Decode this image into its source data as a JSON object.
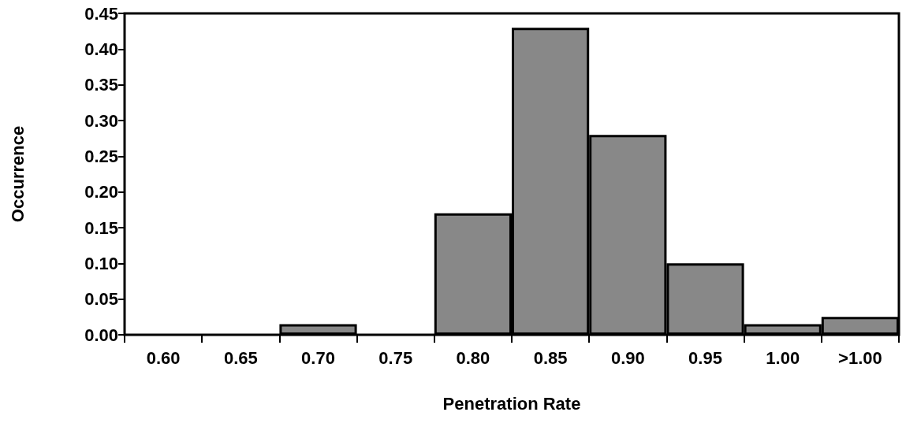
{
  "chart_data": {
    "type": "bar",
    "xlabel": "Penetration Rate",
    "ylabel": "Occurrence",
    "categories": [
      "0.60",
      "0.65",
      "0.70",
      "0.75",
      "0.80",
      "0.85",
      "0.90",
      "0.95",
      "1.00",
      ">1.00"
    ],
    "values": [
      0,
      0,
      0.015,
      0,
      0.17,
      0.43,
      0.28,
      0.1,
      0.015,
      0.025
    ],
    "color": "#888888",
    "ylim": [
      0,
      0.45
    ],
    "yticks": [
      {
        "value": 0,
        "label": "0.00"
      },
      {
        "value": 0.05,
        "label": "0.05"
      },
      {
        "value": 0.1,
        "label": "0.10"
      },
      {
        "value": 0.15,
        "label": "0.15"
      },
      {
        "value": 0.2,
        "label": "0.20"
      },
      {
        "value": 0.25,
        "label": "0.25"
      },
      {
        "value": 0.3,
        "label": "0.30"
      },
      {
        "value": 0.35,
        "label": "0.35"
      },
      {
        "value": 0.4,
        "label": "0.40"
      },
      {
        "value": 0.45,
        "label": "0.45"
      }
    ],
    "grid": false
  }
}
